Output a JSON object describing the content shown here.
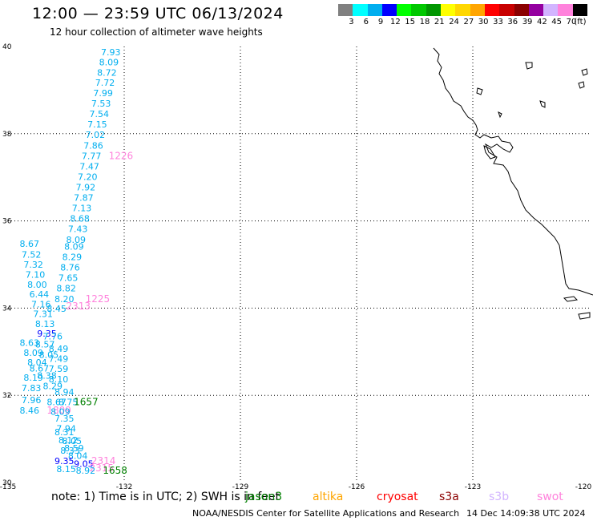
{
  "title": "12:00 — 23:59 UTC 06/13/2024",
  "subtitle": "12 hour collection of altimeter wave heights",
  "legend": {
    "colors": [
      "#808080",
      "#00ffff",
      "#00aeef",
      "#0000ff",
      "#00ff00",
      "#00c800",
      "#009600",
      "#ffff00",
      "#ffd700",
      "#ffa500",
      "#ff0000",
      "#c80000",
      "#8b0000",
      "#9400a0",
      "#d2b4ff",
      "#ff82dc",
      "#000000"
    ],
    "labels": [
      "3",
      "6",
      "9",
      "12",
      "15",
      "18",
      "21",
      "24",
      "27",
      "30",
      "33",
      "36",
      "39",
      "42",
      "45",
      "70",
      "(ft)"
    ]
  },
  "axes": {
    "lon_ticks": [
      "-135",
      "-132",
      "-129",
      "-126",
      "-123",
      "-120"
    ],
    "lat_ticks": [
      "40",
      "38",
      "36",
      "34",
      "32",
      "30"
    ],
    "lon_range": [
      -135,
      -120
    ],
    "lat_range": [
      30,
      40
    ]
  },
  "note": "note:  1) Time is in UTC;  2) SWH is in feet",
  "missions": [
    {
      "name": "jason3",
      "color": "#008000"
    },
    {
      "name": "altika",
      "color": "#ffa500"
    },
    {
      "name": "cryosat",
      "color": "#ff0000"
    },
    {
      "name": "s3a",
      "color": "#8b0000"
    },
    {
      "name": "s3b",
      "color": "#d2b4ff"
    },
    {
      "name": "swot",
      "color": "#ff82dc"
    }
  ],
  "footer_left": "NOAA/NESDIS Center for Satellite Applications and Research",
  "footer_right": "14 Dec 14:09:38 UTC 2024",
  "observations": [
    {
      "text": "7.93",
      "lon": -132.6,
      "lat": 39.8,
      "color": "#00aeef"
    },
    {
      "text": "8.09",
      "lon": -132.65,
      "lat": 39.57,
      "color": "#00aeef"
    },
    {
      "text": "8.72",
      "lon": -132.7,
      "lat": 39.33,
      "color": "#00aeef"
    },
    {
      "text": "7.72",
      "lon": -132.75,
      "lat": 39.1,
      "color": "#00aeef"
    },
    {
      "text": "7.99",
      "lon": -132.8,
      "lat": 38.86,
      "color": "#00aeef"
    },
    {
      "text": "7.53",
      "lon": -132.85,
      "lat": 38.62,
      "color": "#00aeef"
    },
    {
      "text": "7.54",
      "lon": -132.9,
      "lat": 38.38,
      "color": "#00aeef"
    },
    {
      "text": "7.15",
      "lon": -132.95,
      "lat": 38.14,
      "color": "#00aeef"
    },
    {
      "text": "7.02",
      "lon": -133.0,
      "lat": 37.9,
      "color": "#00aeef"
    },
    {
      "text": "7.86",
      "lon": -133.05,
      "lat": 37.66,
      "color": "#00aeef"
    },
    {
      "text": "7.77",
      "lon": -133.1,
      "lat": 37.42,
      "color": "#00aeef"
    },
    {
      "text": "1226",
      "lon": -132.4,
      "lat": 37.42,
      "color": "#ff82dc"
    },
    {
      "text": "7.47",
      "lon": -133.15,
      "lat": 37.18,
      "color": "#00aeef"
    },
    {
      "text": "7.20",
      "lon": -133.2,
      "lat": 36.94,
      "color": "#00aeef"
    },
    {
      "text": "7.92",
      "lon": -133.25,
      "lat": 36.7,
      "color": "#00aeef"
    },
    {
      "text": "7.87",
      "lon": -133.3,
      "lat": 36.46,
      "color": "#00aeef"
    },
    {
      "text": "7.13",
      "lon": -133.35,
      "lat": 36.22,
      "color": "#00aeef"
    },
    {
      "text": "8.68",
      "lon": -133.4,
      "lat": 35.98,
      "color": "#00aeef"
    },
    {
      "text": "7.43",
      "lon": -133.45,
      "lat": 35.74,
      "color": "#00aeef"
    },
    {
      "text": "8.09",
      "lon": -133.5,
      "lat": 35.5,
      "color": "#00aeef"
    },
    {
      "text": "8.67",
      "lon": -134.7,
      "lat": 35.4,
      "color": "#00aeef"
    },
    {
      "text": "8.09",
      "lon": -133.55,
      "lat": 35.34,
      "color": "#00aeef"
    },
    {
      "text": "7.52",
      "lon": -134.65,
      "lat": 35.16,
      "color": "#00aeef"
    },
    {
      "text": "8.29",
      "lon": -133.6,
      "lat": 35.1,
      "color": "#00aeef"
    },
    {
      "text": "7.32",
      "lon": -134.6,
      "lat": 34.93,
      "color": "#00aeef"
    },
    {
      "text": "8.76",
      "lon": -133.65,
      "lat": 34.86,
      "color": "#00aeef"
    },
    {
      "text": "7.10",
      "lon": -134.55,
      "lat": 34.7,
      "color": "#00aeef"
    },
    {
      "text": "7.65",
      "lon": -133.7,
      "lat": 34.62,
      "color": "#00aeef"
    },
    {
      "text": "8.00",
      "lon": -134.5,
      "lat": 34.47,
      "color": "#00aeef"
    },
    {
      "text": "8.82",
      "lon": -133.75,
      "lat": 34.38,
      "color": "#00aeef"
    },
    {
      "text": "6.44",
      "lon": -134.45,
      "lat": 34.25,
      "color": "#00aeef"
    },
    {
      "text": "8.20",
      "lon": -133.8,
      "lat": 34.14,
      "color": "#00aeef"
    },
    {
      "text": "1225",
      "lon": -133.0,
      "lat": 34.14,
      "color": "#ff82dc"
    },
    {
      "text": "7.16",
      "lon": -134.4,
      "lat": 34.02,
      "color": "#00aeef"
    },
    {
      "text": "2313",
      "lon": -133.5,
      "lat": 33.97,
      "color": "#ff82dc"
    },
    {
      "text": "8.45",
      "lon": -134.0,
      "lat": 33.92,
      "color": "#00aeef"
    },
    {
      "text": "7.31",
      "lon": -134.35,
      "lat": 33.8,
      "color": "#00aeef"
    },
    {
      "text": "8.13",
      "lon": -134.3,
      "lat": 33.57,
      "color": "#00aeef"
    },
    {
      "text": "9.35",
      "lon": -134.25,
      "lat": 33.35,
      "color": "#0000ff"
    },
    {
      "text": "7.76",
      "lon": -134.1,
      "lat": 33.28,
      "color": "#00aeef"
    },
    {
      "text": "8.63",
      "lon": -134.7,
      "lat": 33.13,
      "color": "#00aeef"
    },
    {
      "text": "8.57",
      "lon": -134.3,
      "lat": 33.1,
      "color": "#00aeef"
    },
    {
      "text": "8.49",
      "lon": -133.95,
      "lat": 33.0,
      "color": "#00aeef"
    },
    {
      "text": "8.09",
      "lon": -134.6,
      "lat": 32.9,
      "color": "#00aeef"
    },
    {
      "text": "8.05",
      "lon": -134.2,
      "lat": 32.86,
      "color": "#00aeef"
    },
    {
      "text": "7.49",
      "lon": -133.95,
      "lat": 32.77,
      "color": "#00aeef"
    },
    {
      "text": "8.04",
      "lon": -134.5,
      "lat": 32.68,
      "color": "#00aeef"
    },
    {
      "text": "8.67",
      "lon": -134.45,
      "lat": 32.55,
      "color": "#00aeef"
    },
    {
      "text": "7.59",
      "lon": -133.95,
      "lat": 32.54,
      "color": "#00aeef"
    },
    {
      "text": "8.19",
      "lon": -134.6,
      "lat": 32.33,
      "color": "#00aeef"
    },
    {
      "text": "8.38",
      "lon": -134.25,
      "lat": 32.38,
      "color": "#00aeef"
    },
    {
      "text": "8.10",
      "lon": -133.95,
      "lat": 32.3,
      "color": "#00aeef"
    },
    {
      "text": "7.83",
      "lon": -134.65,
      "lat": 32.1,
      "color": "#00aeef"
    },
    {
      "text": "8.29",
      "lon": -134.1,
      "lat": 32.14,
      "color": "#00aeef"
    },
    {
      "text": "8.94",
      "lon": -133.8,
      "lat": 32.0,
      "color": "#00aeef"
    },
    {
      "text": "7.96",
      "lon": -134.65,
      "lat": 31.82,
      "color": "#00aeef"
    },
    {
      "text": "8.67",
      "lon": -134.0,
      "lat": 31.77,
      "color": "#00aeef"
    },
    {
      "text": "8.75",
      "lon": -133.7,
      "lat": 31.77,
      "color": "#00aeef"
    },
    {
      "text": "1657",
      "lon": -133.3,
      "lat": 31.77,
      "color": "#008000"
    },
    {
      "text": "8.46",
      "lon": -134.7,
      "lat": 31.58,
      "color": "#00aeef"
    },
    {
      "text": "1809",
      "lon": -134.0,
      "lat": 31.58,
      "color": "#ff82dc"
    },
    {
      "text": "8.09",
      "lon": -133.9,
      "lat": 31.55,
      "color": "#00aeef"
    },
    {
      "text": "7.35",
      "lon": -133.8,
      "lat": 31.4,
      "color": "#00aeef"
    },
    {
      "text": "7.94",
      "lon": -133.75,
      "lat": 31.17,
      "color": "#00aeef"
    },
    {
      "text": "8.31",
      "lon": -133.8,
      "lat": 31.08,
      "color": "#00aeef"
    },
    {
      "text": "8.12",
      "lon": -133.7,
      "lat": 30.9,
      "color": "#00aeef"
    },
    {
      "text": "8.05",
      "lon": -133.6,
      "lat": 30.88,
      "color": "#00aeef"
    },
    {
      "text": "8.59",
      "lon": -133.55,
      "lat": 30.72,
      "color": "#00aeef"
    },
    {
      "text": "8.33",
      "lon": -133.65,
      "lat": 30.66,
      "color": "#00aeef"
    },
    {
      "text": "8.04",
      "lon": -133.45,
      "lat": 30.54,
      "color": "#00aeef"
    },
    {
      "text": "2314",
      "lon": -132.85,
      "lat": 30.42,
      "color": "#ff82dc"
    },
    {
      "text": "9.35",
      "lon": -133.8,
      "lat": 30.42,
      "color": "#0000ff"
    },
    {
      "text": "9.05",
      "lon": -133.3,
      "lat": 30.36,
      "color": "#0000ff"
    },
    {
      "text": "2315",
      "lon": -132.9,
      "lat": 30.26,
      "color": "#ff82dc"
    },
    {
      "text": "8.15",
      "lon": -133.75,
      "lat": 30.24,
      "color": "#00aeef"
    },
    {
      "text": "8.92",
      "lon": -133.25,
      "lat": 30.2,
      "color": "#00aeef"
    },
    {
      "text": "1658",
      "lon": -132.55,
      "lat": 30.2,
      "color": "#008000"
    }
  ]
}
